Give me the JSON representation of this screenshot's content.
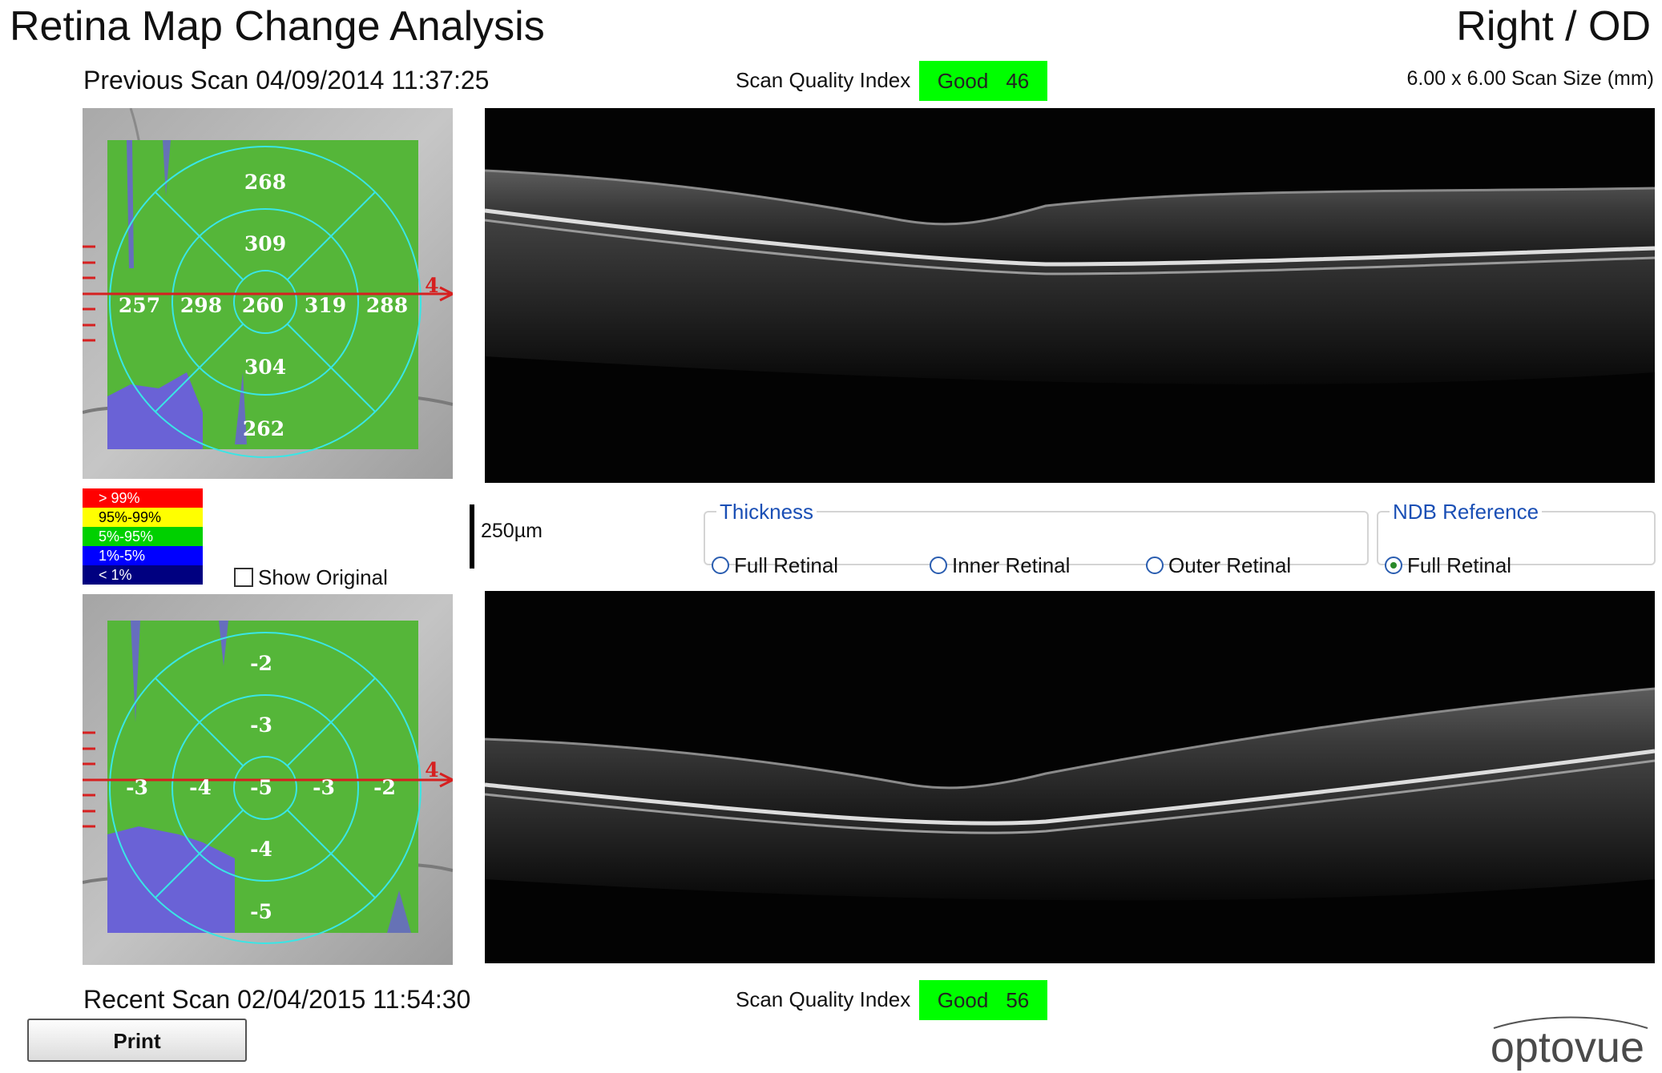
{
  "app": {
    "title": "Retina Map Change Analysis",
    "eye": "Right / OD",
    "scan_size": "6.00 x 6.00 Scan Size (mm)",
    "logo": "optovue"
  },
  "previous_scan": {
    "heading": "Previous Scan 04/09/2014 11:37:25",
    "sqi_label": "Scan Quality Index",
    "sqi_quality": "Good",
    "sqi_value": "46",
    "sectors": {
      "superior_outer": "268",
      "superior_inner": "309",
      "temporal_outer": "257",
      "temporal_inner": "298",
      "center": "260",
      "nasal_inner": "319",
      "nasal_outer": "288",
      "inferior_inner": "304",
      "inferior_outer": "262"
    }
  },
  "recent_scan": {
    "heading": "Recent Scan 02/04/2015 11:54:30",
    "sqi_label": "Scan Quality Index",
    "sqi_quality": "Good",
    "sqi_value": "56",
    "sectors": {
      "superior_outer": "-2",
      "superior_inner": "-3",
      "temporal_outer": "-3",
      "temporal_inner": "-4",
      "center": "-5",
      "nasal_inner": "-3",
      "nasal_outer": "-2",
      "inferior_inner": "-4",
      "inferior_outer": "-5"
    }
  },
  "map_marker": "4",
  "legend": [
    {
      "label": "> 99%",
      "color": "#ff0000",
      "text_color": "#ffffff"
    },
    {
      "label": "95%-99%",
      "color": "#ffff00",
      "text_color": "#000000"
    },
    {
      "label": "5%-95%",
      "color": "#00d000",
      "text_color": "#ffffff"
    },
    {
      "label": "1%-5%",
      "color": "#0000ff",
      "text_color": "#ffffff"
    },
    {
      "label": "< 1%",
      "color": "#000080",
      "text_color": "#ffffff"
    }
  ],
  "show_original": {
    "label": "Show Original",
    "checked": false
  },
  "scale_bar_label": "250µm",
  "thickness": {
    "legend": "Thickness",
    "options": [
      "Full Retinal",
      "Inner Retinal",
      "Outer Retinal"
    ],
    "selected": -1
  },
  "ndb_reference": {
    "legend": "NDB Reference",
    "options": [
      "Full Retinal"
    ],
    "selected": 0
  },
  "print_label": "Print",
  "colors": {
    "sqi_good": "#00ff00",
    "map_green": "#58c13c",
    "map_blue": "#5a5ad8",
    "grid_cyan": "#39e6e6",
    "scan_line": "#d62020",
    "group_title": "#1a4fb5"
  }
}
